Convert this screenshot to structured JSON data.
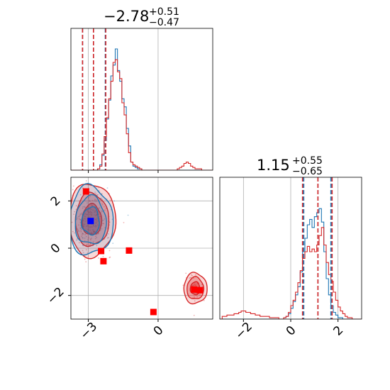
{
  "chart_data": {
    "type": "corner",
    "colors": {
      "blue": "#1f77b4",
      "red": "#d62728",
      "grid": "#b0b0b0"
    },
    "param1": {
      "title": {
        "median": "−2.78",
        "plus": "+0.51",
        "minus": "−0.47"
      },
      "range": [
        -3.75,
        2.35
      ],
      "ticks": [
        -3,
        0
      ],
      "tick_labels": [
        "−3",
        "0"
      ],
      "quantile_lines": {
        "blue": [
          -3.25,
          -2.78,
          -2.27
        ],
        "red": [
          -3.25,
          -2.78,
          -2.25
        ]
      }
    },
    "param2": {
      "title": {
        "median": "1.15",
        "plus": "+0.55",
        "minus": "−0.65"
      },
      "range": [
        -3.0,
        3.0
      ],
      "ticks": [
        -2,
        0,
        2
      ],
      "tick_labels": [
        "−2",
        "0",
        "2"
      ],
      "quantile_lines": {
        "blue": [
          0.55,
          1.15,
          1.7
        ],
        "red": [
          0.5,
          1.15,
          1.75
        ]
      }
    },
    "grid": true,
    "blue_point": {
      "x": -2.9,
      "y": 1.15
    },
    "red_points": [
      {
        "x": -3.1,
        "y": 2.4
      },
      {
        "x": -2.45,
        "y": -0.12
      },
      {
        "x": -2.35,
        "y": -0.55
      },
      {
        "x": -1.25,
        "y": -0.1
      },
      {
        "x": -0.2,
        "y": -2.7
      },
      {
        "x": 1.55,
        "y": -1.75
      },
      {
        "x": 1.8,
        "y": -1.78
      }
    ],
    "hist1": {
      "blue": [
        0,
        0,
        0,
        0,
        0,
        0,
        0,
        0,
        0,
        0,
        0,
        0,
        0.01,
        0.04,
        0.11,
        0.22,
        0.38,
        0.52,
        0.7,
        0.78,
        0.9,
        0.74,
        0.66,
        0.53,
        0.47,
        0.31,
        0.18,
        0.06,
        0.03,
        0.02,
        0.01,
        0.01,
        0,
        0,
        0,
        0,
        0,
        0,
        0,
        0,
        0,
        0,
        0,
        0,
        0,
        0,
        0,
        0,
        0,
        0,
        0,
        0,
        0,
        0,
        0,
        0,
        0,
        0,
        0,
        0,
        0,
        0,
        0,
        0
      ],
      "red": [
        0,
        0,
        0,
        0,
        0,
        0,
        0,
        0,
        0,
        0,
        0,
        0,
        0.01,
        0.03,
        0.12,
        0.25,
        0.39,
        0.53,
        0.66,
        0.8,
        0.82,
        0.73,
        0.68,
        0.5,
        0.41,
        0.27,
        0.13,
        0.06,
        0.04,
        0.03,
        0.02,
        0.01,
        0,
        0,
        0,
        0,
        0,
        0,
        0,
        0,
        0,
        0,
        0,
        0,
        0,
        0,
        0,
        0,
        0.01,
        0.02,
        0.03,
        0.05,
        0.06,
        0.05,
        0.03,
        0.02,
        0.01,
        0.01,
        0.01,
        0,
        0,
        0,
        0,
        0
      ]
    },
    "hist2": {
      "blue": [
        0,
        0,
        0,
        0,
        0,
        0,
        0,
        0,
        0,
        0,
        0,
        0,
        0,
        0,
        0,
        0,
        0,
        0,
        0,
        0,
        0,
        0,
        0,
        0,
        0,
        0,
        0,
        0.01,
        0.02,
        0.04,
        0.08,
        0.13,
        0.18,
        0.24,
        0.35,
        0.5,
        0.6,
        0.7,
        0.74,
        0.68,
        0.76,
        0.79,
        0.82,
        0.72,
        0.5,
        0.3,
        0.18,
        0.1,
        0.05,
        0.03,
        0.01,
        0.01,
        0,
        0,
        0,
        0,
        0,
        0,
        0,
        0
      ],
      "red": [
        0,
        0.02,
        0.02,
        0.03,
        0.03,
        0.03,
        0.04,
        0.04,
        0.05,
        0.06,
        0.06,
        0.05,
        0.05,
        0.04,
        0.04,
        0.03,
        0.03,
        0.02,
        0.02,
        0.02,
        0.02,
        0.01,
        0.01,
        0.01,
        0.01,
        0,
        0,
        0.01,
        0.02,
        0.05,
        0.1,
        0.14,
        0.2,
        0.27,
        0.36,
        0.45,
        0.5,
        0.54,
        0.5,
        0.52,
        0.5,
        0.55,
        0.62,
        0.68,
        0.55,
        0.42,
        0.33,
        0.28,
        0.2,
        0.14,
        0.09,
        0.06,
        0.04,
        0.02,
        0.01,
        0.01,
        0,
        0,
        0,
        0
      ]
    },
    "modes": [
      {
        "cx": -2.9,
        "cy": 1.15,
        "rx": 0.95,
        "ry": 1.45,
        "color": "blue"
      },
      {
        "cx": -2.85,
        "cy": 1.2,
        "rx": 1.0,
        "ry": 1.55,
        "color": "red"
      },
      {
        "cx": 1.6,
        "cy": -1.7,
        "rx": 0.5,
        "ry": 0.65,
        "color": "red"
      }
    ]
  }
}
